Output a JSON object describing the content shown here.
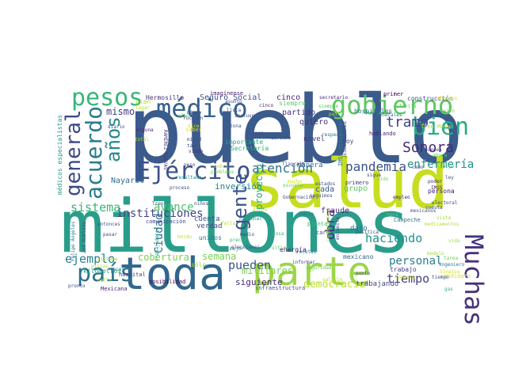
{
  "words": [
    {
      "text": "pueblo",
      "color": "#3b5b8c"
    },
    {
      "text": "millones",
      "color": "#2a9d8a"
    },
    {
      "text": "salud",
      "color": "#c6de1f"
    },
    {
      "text": "toda",
      "color": "#31668e"
    },
    {
      "text": "parte",
      "color": "#9cd54a"
    },
    {
      "text": "gobierno",
      "color": "#5ec862"
    },
    {
      "text": "médico",
      "color": "#34618d"
    },
    {
      "text": "pesos",
      "color": "#35b779"
    },
    {
      "text": "Ejército",
      "color": "#3b528b"
    },
    {
      "text": "Muchas",
      "color": "#45337d"
    },
    {
      "text": "país",
      "color": "#2d708e"
    },
    {
      "text": "bien",
      "color": "#27ad81"
    },
    {
      "text": "acuerdo",
      "color": "#287c8e"
    },
    {
      "text": "general",
      "color": "#3e4989"
    },
    {
      "text": "años",
      "color": "#23898e"
    },
    {
      "text": "gente",
      "color": "#3a538b"
    },
    {
      "text": "tramo",
      "color": "#404387"
    },
    {
      "text": "Sonora",
      "color": "#482878"
    },
    {
      "text": "pandemia",
      "color": "#3b528b"
    },
    {
      "text": "atención",
      "color": "#2c718e"
    },
    {
      "text": "enfermería",
      "color": "#21918c"
    },
    {
      "text": "sistema",
      "color": "#35b779"
    },
    {
      "text": "instituciones",
      "color": "#414487"
    },
    {
      "text": "avance",
      "color": "#4ac16d"
    },
    {
      "text": "ejemplo",
      "color": "#277f8e"
    },
    {
      "text": "obra",
      "color": "#48257d"
    },
    {
      "text": "haciendo",
      "color": "#21918c"
    },
    {
      "text": "personal",
      "color": "#287c8e"
    },
    {
      "text": "pueden",
      "color": "#3b528b"
    },
    {
      "text": "tiempo",
      "color": "#423f85"
    },
    {
      "text": "semana",
      "color": "#7ad151"
    },
    {
      "text": "cobertura",
      "color": "#7ad151"
    },
    {
      "text": "siguiente",
      "color": "#482878"
    },
    {
      "text": "democracia",
      "color": "#b8de29"
    },
    {
      "text": "mismo",
      "color": "#433e85"
    },
    {
      "text": "Seguro Social",
      "color": "#3b528b"
    },
    {
      "text": "cinco",
      "color": "#482576"
    },
    {
      "text": "partido",
      "color": "#46327e"
    },
    {
      "text": "quiero",
      "color": "#472d7b"
    },
    {
      "text": "siempre",
      "color": "#5ec962"
    },
    {
      "text": "Hermosillo",
      "color": "#46337e"
    },
    {
      "text": "plan",
      "color": "#b5de2b"
    },
    {
      "text": "imagínense",
      "color": "#481a6c"
    },
    {
      "text": "asunto",
      "color": "#3e4a89"
    },
    {
      "text": "Ciudad",
      "color": "#2c728e"
    },
    {
      "text": "inversión",
      "color": "#26818e"
    },
    {
      "text": "importante",
      "color": "#22a884"
    },
    {
      "text": "verdad",
      "color": "#414487"
    },
    {
      "text": "unidos",
      "color": "#2a788e"
    },
    {
      "text": "cada",
      "color": "#3b528b"
    },
    {
      "text": "fraude",
      "color": "#46307e"
    },
    {
      "text": "grupo",
      "color": "#5ec962"
    },
    {
      "text": "persona",
      "color": "#482173"
    },
    {
      "text": "Nayarit",
      "color": "#2f6c8e"
    },
    {
      "text": "cuenta",
      "color": "#3b518b"
    },
    {
      "text": "militares",
      "color": "#7ad151"
    },
    {
      "text": "energía",
      "color": "#482475"
    },
    {
      "text": "trabajando",
      "color": "#404588"
    },
    {
      "text": "mexicano",
      "color": "#31688e"
    },
    {
      "text": "trabajo",
      "color": "#443a83"
    },
    {
      "text": "Secretaría",
      "color": "#2eb37c"
    },
    {
      "text": "nivel",
      "color": "#453781"
    },
    {
      "text": "manera",
      "color": "#31688e"
    },
    {
      "text": "hoy",
      "color": "#3f4788"
    },
    {
      "text": "primero",
      "color": "#443983"
    },
    {
      "text": "dato",
      "color": "#2c728e"
    },
    {
      "text": "proyecto",
      "color": "#23a983"
    },
    {
      "text": "construcción",
      "color": "#3e4c8a"
    },
    {
      "text": "primer",
      "color": "#440154"
    },
    {
      "text": "hospitales",
      "color": "#2a778e"
    },
    {
      "text": "infraestructura",
      "color": "#3b528b"
    },
    {
      "text": "Mexicana",
      "color": "#482677"
    },
    {
      "text": "médicos especialistas",
      "color": "#1f9e89"
    },
    {
      "text": "kilómetros",
      "color": "#22a785"
    },
    {
      "text": "hospital",
      "color": "#46337f"
    },
    {
      "text": "comunicación",
      "color": "#404588"
    },
    {
      "text": "posibilidad",
      "color": "#440154"
    },
    {
      "text": "sólo",
      "color": "#9fda3a"
    },
    {
      "text": "mejor",
      "color": "#2d708e"
    },
    {
      "text": "precio",
      "color": "#35b779"
    },
    {
      "text": "recetas",
      "color": "#29798e"
    },
    {
      "text": "seguridad",
      "color": "#6ece58"
    },
    {
      "text": "planta",
      "color": "#35b779"
    },
    {
      "text": "Campeche",
      "color": "#2a788e"
    },
    {
      "text": "candidato",
      "color": "#d8e219"
    },
    {
      "text": "Tren Maya",
      "color": "#b5de2b"
    },
    {
      "text": "caso",
      "color": "#3e4989"
    },
    {
      "text": "zona",
      "color": "#3b528b"
    },
    {
      "text": "cargo",
      "color": "#3f4889"
    },
    {
      "text": "hacia",
      "color": "#2d708e"
    },
    {
      "text": "sido",
      "color": "#7ad151"
    },
    {
      "text": "sigue",
      "color": "#414487"
    },
    {
      "text": "respecto",
      "color": "#2c718e"
    },
    {
      "text": "hablando",
      "color": "#482475"
    },
    {
      "text": "Tlaxcala",
      "color": "#3b528b"
    },
    {
      "text": "secretario",
      "color": "#482878"
    },
    {
      "text": "cabo",
      "color": "#3b528b"
    },
    {
      "text": "apoyo",
      "color": "#5ec962"
    },
    {
      "text": "poder",
      "color": "#482475"
    },
    {
      "text": "IMSS",
      "color": "#482878"
    },
    {
      "text": "generales",
      "color": "#2c728e"
    },
    {
      "text": "medicamentos",
      "color": "#b5de2b"
    },
    {
      "text": "RAMÍREZ CUEVAS",
      "color": "#46337e"
    },
    {
      "text": "JESÚS RAMÍREZ",
      "color": "#3e4989"
    },
    {
      "text": "IMSS Bienestar",
      "color": "#2a788e"
    },
    {
      "text": "Zoé Robledo",
      "color": "#3b528b"
    },
    {
      "text": "Felipe Ángeles",
      "color": "#2a788e"
    },
    {
      "text": "trabajadores",
      "color": "#1f9e89"
    },
    {
      "text": "elecciones",
      "color": "#3b528b"
    },
    {
      "text": "nacional",
      "color": "#21918c"
    },
    {
      "text": "falta",
      "color": "#b5de2b"
    },
    {
      "text": "vista",
      "color": "#9fda3a"
    },
    {
      "text": "pasar",
      "color": "#3e4989"
    },
    {
      "text": "veces",
      "color": "#2a788e"
    },
    {
      "text": "medio",
      "color": "#3e4989"
    },
    {
      "text": "último",
      "color": "#5ec962"
    },
    {
      "text": "cosa",
      "color": "#35b779"
    },
    {
      "text": "dicho",
      "color": "#b5de2b"
    },
    {
      "text": "saber",
      "color": "#d8e219"
    },
    {
      "text": "tan",
      "color": "#3e4989"
    },
    {
      "text": "visto",
      "color": "#482878"
    },
    {
      "text": "niños",
      "color": "#3e4989"
    },
    {
      "text": "diario",
      "color": "#3b528b"
    },
    {
      "text": "alguna",
      "color": "#482878"
    },
    {
      "text": "resultado",
      "color": "#21918c"
    },
    {
      "text": "proceso",
      "color": "#3e4989"
    },
    {
      "text": "Yucatán",
      "color": "#3e4989"
    },
    {
      "text": "mitad",
      "color": "#3b528b"
    },
    {
      "text": "informar",
      "color": "#3e4989"
    },
    {
      "text": "encuesta",
      "color": "#3e4989"
    },
    {
      "text": "electoral",
      "color": "#3e4989"
    },
    {
      "text": "ingeniero",
      "color": "#2a788e"
    },
    {
      "text": "empleo",
      "color": "#482878"
    },
    {
      "text": "derecho",
      "color": "#3b528b"
    },
    {
      "text": "política",
      "color": "#3e4989"
    },
    {
      "text": "competencia",
      "color": "#9fda3a"
    },
    {
      "text": "incluso",
      "color": "#3e4989"
    },
    {
      "text": "ahora",
      "color": "#5ec962"
    },
    {
      "text": "lista",
      "color": "#3b528b"
    },
    {
      "text": "cinco",
      "color": "#482576"
    },
    {
      "text": "Tren",
      "color": "#3b528b"
    },
    {
      "text": "sistema",
      "color": "#9fda3a"
    },
    {
      "text": "abrazos",
      "color": "#d8e219"
    },
    {
      "text": "avión",
      "color": "#6ece58"
    },
    {
      "text": "modelo",
      "color": "#9fda3a"
    },
    {
      "text": "salario",
      "color": "#b5de2b"
    },
    {
      "text": "Sinaloa",
      "color": "#d8e219"
    },
    {
      "text": "vida",
      "color": "#9fda3a"
    },
    {
      "text": "gas",
      "color": "#35b779"
    },
    {
      "text": "pronto",
      "color": "#3e4989"
    },
    {
      "text": "Unido",
      "color": "#b5de2b"
    },
    {
      "text": "escuela",
      "color": "#5ec962"
    },
    {
      "text": "cobro",
      "color": "#b5de2b"
    },
    {
      "text": "problema",
      "color": "#6ece58"
    },
    {
      "text": "mucho",
      "color": "#d8e219"
    },
    {
      "text": "peso",
      "color": "#3e4989"
    },
    {
      "text": "tarea",
      "color": "#6ece58"
    },
    {
      "text": "ley",
      "color": "#3b528b"
    },
    {
      "text": "mexicanos",
      "color": "#3b528b"
    },
    {
      "text": "plazas",
      "color": "#b5de2b"
    },
    {
      "text": "entonces",
      "color": "#3b528b"
    },
    {
      "text": "cuesta",
      "color": "#3e4989"
    },
    {
      "text": "hora",
      "color": "#5ec962"
    },
    {
      "text": "total",
      "color": "#b5de2b"
    },
    {
      "text": "tarifa",
      "color": "#5ec962"
    },
    {
      "text": "estados",
      "color": "#3b528b"
    },
    {
      "text": "dice",
      "color": "#d8e219"
    },
    {
      "text": "siempre",
      "color": "#5ec962"
    },
    {
      "text": "país",
      "color": "#b5de2b"
    },
    {
      "text": "plan",
      "color": "#6ece58"
    },
    {
      "text": "mismo",
      "color": "#3e4989"
    },
    {
      "text": "tiempo",
      "color": "#3b528b"
    },
    {
      "text": "pueden",
      "color": "#3e4989"
    },
    {
      "text": "canasta",
      "color": "#d8e219"
    },
    {
      "text": "calle",
      "color": "#b5de2b"
    },
    {
      "text": "lugar",
      "color": "#b5de2b"
    },
    {
      "text": "punto",
      "color": "#3e4989"
    },
    {
      "text": "Gobernación",
      "color": "#3e4989"
    },
    {
      "text": "seguimos",
      "color": "#3e4989"
    }
  ]
}
